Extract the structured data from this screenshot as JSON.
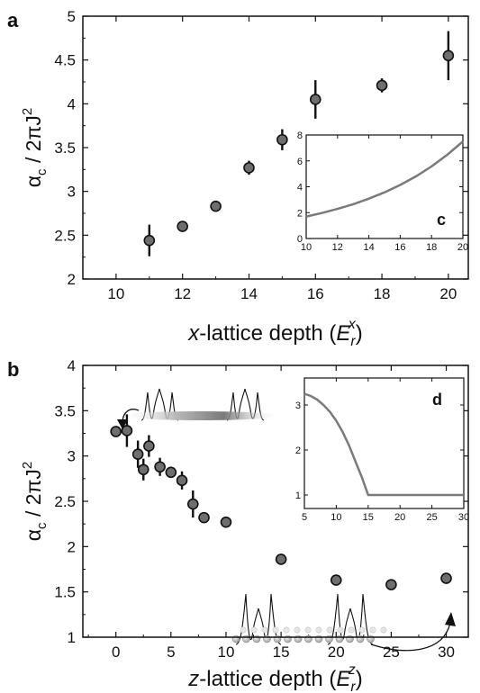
{
  "chart_data": [
    {
      "panel": "a",
      "type": "scatter",
      "xlabel": {
        "var": "x",
        "rest": "-lattice depth (",
        "E": "E",
        "sub": "r",
        "sup": "x",
        "close": ")"
      },
      "ylabel": {
        "alpha": "α",
        "alpha_sub": "c",
        "rest": " / 2πJ",
        "sup": "2"
      },
      "xlim": [
        9,
        20.6
      ],
      "ylim": [
        2,
        5
      ],
      "xticks": [
        10,
        12,
        14,
        16,
        18,
        20
      ],
      "yticks": [
        "2",
        "2.5",
        "3",
        "3.5",
        "4",
        "4.5",
        "5"
      ],
      "x": [
        11,
        12,
        13,
        14,
        15,
        16,
        18,
        20
      ],
      "y": [
        2.44,
        2.6,
        2.83,
        3.27,
        3.59,
        4.05,
        4.21,
        4.55
      ],
      "yerr": [
        0.18,
        0.05,
        0.05,
        0.08,
        0.12,
        0.22,
        0.08,
        0.28
      ],
      "inset": {
        "panel": "c",
        "type": "line",
        "xlim": [
          10,
          20
        ],
        "ylim": [
          0,
          8
        ],
        "xticks": [
          10,
          12,
          14,
          16,
          18,
          20
        ],
        "yticks": [
          0,
          2,
          4,
          6,
          8
        ],
        "x": [
          10,
          11,
          12,
          13,
          14,
          15,
          16,
          17,
          18,
          19,
          20
        ],
        "y": [
          1.7,
          1.97,
          2.29,
          2.65,
          3.08,
          3.57,
          4.14,
          4.8,
          5.57,
          6.47,
          7.5
        ]
      }
    },
    {
      "panel": "b",
      "type": "scatter",
      "xlabel": {
        "var": "z",
        "rest": "-lattice depth (",
        "E": "E",
        "sub": "r",
        "sup": "z",
        "close": ")"
      },
      "ylabel": {
        "alpha": "α",
        "alpha_sub": "c",
        "rest": " / 2πJ",
        "sup": "2"
      },
      "xlim": [
        -3,
        32
      ],
      "ylim": [
        1,
        4
      ],
      "xticks": [
        0,
        5,
        10,
        15,
        20,
        25,
        30
      ],
      "yticks": [
        "1",
        "1.5",
        "2",
        "2.5",
        "3",
        "3.5",
        "4"
      ],
      "x": [
        0,
        1,
        2,
        2.5,
        3,
        4,
        5,
        6,
        7,
        8,
        10,
        15,
        20,
        25,
        30
      ],
      "y": [
        3.27,
        3.28,
        3.02,
        2.85,
        3.11,
        2.88,
        2.82,
        2.73,
        2.47,
        2.32,
        2.27,
        1.86,
        1.63,
        1.58,
        1.65
      ],
      "yerr": [
        0.06,
        0.18,
        0.15,
        0.12,
        0.12,
        0.1,
        0.06,
        0.1,
        0.15,
        0.05,
        0.05,
        0.05,
        0.05,
        0.05,
        0.05
      ],
      "inset": {
        "panel": "d",
        "type": "line",
        "xlim": [
          5,
          30
        ],
        "ylim": [
          0.7,
          3.6
        ],
        "xticks": [
          5,
          10,
          15,
          20,
          25,
          30
        ],
        "yticks": [
          1,
          2,
          3
        ],
        "x": [
          5,
          6,
          7,
          8,
          9,
          10,
          11,
          12,
          13,
          14,
          15,
          16,
          20,
          25,
          30
        ],
        "y": [
          3.25,
          3.2,
          3.12,
          3.0,
          2.85,
          2.65,
          2.4,
          2.1,
          1.75,
          1.4,
          1.0,
          1.0,
          1.0,
          1.0,
          1.0
        ]
      }
    }
  ],
  "colors": {
    "marker_fill": "#6e6e6e",
    "marker_edge": "#111111",
    "inset_line": "#7a7a7a",
    "axis": "#111111"
  }
}
